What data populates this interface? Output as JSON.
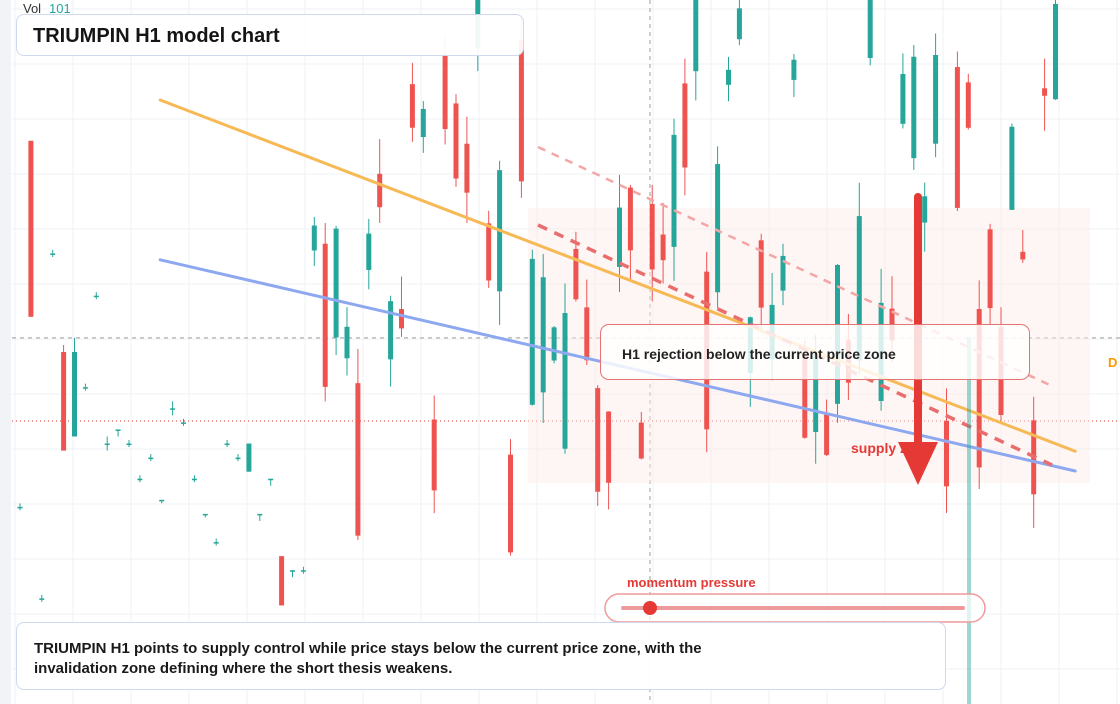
{
  "header": {
    "vol_label": "Vol",
    "vol_value": "101"
  },
  "title": "TRIUMPIN H1 model chart",
  "annotations": {
    "rejection": "H1 rejection below the current price zone",
    "supply": "supply zone",
    "momentum": "momentum pressure",
    "summary": "TRIUMPIN H1 points to supply control while price stays below the current price zone, with the invalidation zone defining where the short thesis weakens.",
    "edge_label": "D"
  },
  "colors": {
    "up": "#26a69a",
    "down": "#ef5350",
    "orange_line": "#f7b955",
    "blue_line": "#8ea8f0",
    "arrow": "#e53935",
    "zone": "#fdebe6"
  },
  "chart_data": {
    "type": "candlestick",
    "title": "TRIUMPIN H1 model chart",
    "current_price_level": 0.62,
    "reference_level": 0.52,
    "candles": [
      [
        0.28,
        0.28,
        0.285,
        0.275
      ],
      [
        0.8,
        0.55,
        0.8,
        0.55
      ],
      [
        0.15,
        0.15,
        0.155,
        0.145
      ],
      [
        0.64,
        0.64,
        0.645,
        0.635
      ],
      [
        0.5,
        0.36,
        0.51,
        0.36
      ],
      [
        0.38,
        0.5,
        0.52,
        0.38
      ],
      [
        0.45,
        0.45,
        0.455,
        0.445
      ],
      [
        0.58,
        0.58,
        0.585,
        0.575
      ],
      [
        0.37,
        0.37,
        0.38,
        0.36
      ],
      [
        0.39,
        0.39,
        0.39,
        0.38
      ],
      [
        0.37,
        0.37,
        0.375,
        0.365
      ],
      [
        0.32,
        0.32,
        0.325,
        0.315
      ],
      [
        0.35,
        0.35,
        0.355,
        0.345
      ],
      [
        0.29,
        0.29,
        0.29,
        0.285
      ],
      [
        0.42,
        0.42,
        0.43,
        0.41
      ],
      [
        0.4,
        0.4,
        0.405,
        0.395
      ],
      [
        0.32,
        0.32,
        0.325,
        0.315
      ],
      [
        0.27,
        0.27,
        0.27,
        0.265
      ],
      [
        0.23,
        0.23,
        0.235,
        0.225
      ],
      [
        0.37,
        0.37,
        0.375,
        0.365
      ],
      [
        0.35,
        0.35,
        0.355,
        0.345
      ],
      [
        0.33,
        0.37,
        0.37,
        0.33
      ],
      [
        0.27,
        0.27,
        0.27,
        0.26
      ],
      [
        0.32,
        0.32,
        0.32,
        0.31
      ],
      [
        0.21,
        0.14,
        0.21,
        0.14
      ],
      [
        0.19,
        0.19,
        0.19,
        0.18
      ],
      [
        0.19,
        0.19,
        0.195,
        0.185
      ]
    ],
    "trendlines": [
      {
        "name": "orange",
        "from": [
          0.143,
          0.858
        ],
        "to": [
          0.96,
          0.359
        ]
      },
      {
        "name": "blue",
        "from": [
          0.143,
          0.631
        ],
        "to": [
          0.96,
          0.331
        ]
      }
    ]
  }
}
